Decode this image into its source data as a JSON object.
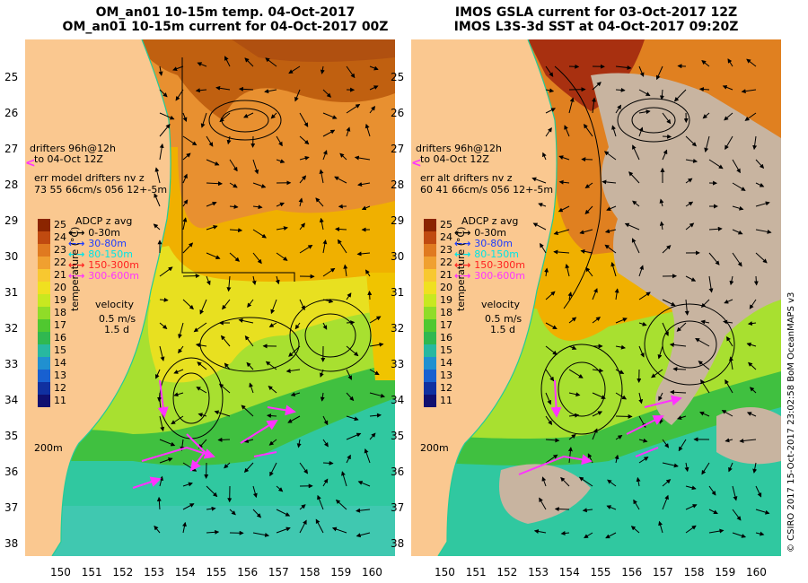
{
  "left_panel": {
    "title_line1": "OM_an01 10-15m temp. 04-Oct-2017",
    "title_line2": "OM_an01 10-15m current for 04-Oct-2017 00Z",
    "drifters_line1": "drifters 96h@12h",
    "drifters_line2": "to 04-Oct 12Z",
    "err_line1": "err model drifters nv z",
    "err_line2": "73 55 66cm/s 056 12+-5m",
    "depth_label": "200m"
  },
  "right_panel": {
    "title_line1": "IMOS GSLA current for 03-Oct-2017 12Z",
    "title_line2": "IMOS L3S-3d SST at 04-Oct-2017 09:20Z",
    "drifters_line1": "drifters 96h@12h",
    "drifters_line2": "to 04-Oct 12Z",
    "err_line1": "err alt drifters nv z",
    "err_line2": "60 41 66cm/s 056 12+-5m",
    "depth_label": "200m"
  },
  "legend": {
    "adcp_title": "ADCP z avg",
    "adcp_items": [
      {
        "label": "0-30m",
        "color": "#000000"
      },
      {
        "label": "30-80m",
        "color": "#1e3cff"
      },
      {
        "label": "80-150m",
        "color": "#00e5e5"
      },
      {
        "label": "150-300m",
        "color": "#ff2020"
      },
      {
        "label": "300-600m",
        "color": "#ff33ff"
      }
    ],
    "velocity_line1": "velocity",
    "velocity_line2": "0.5 m/s",
    "velocity_line3": "1.5 d",
    "colorbar_label": "temperature (°C)",
    "colorbar_ticks": [
      "25",
      "24",
      "23",
      "22",
      "21",
      "20",
      "19",
      "18",
      "17",
      "16",
      "15",
      "14",
      "13",
      "12",
      "11"
    ]
  },
  "axes": {
    "lat_ticks": [
      "25",
      "26",
      "27",
      "28",
      "29",
      "30",
      "31",
      "32",
      "33",
      "34",
      "35",
      "36",
      "37",
      "38"
    ],
    "lon_ticks": [
      "150",
      "151",
      "152",
      "153",
      "154",
      "155",
      "156",
      "157",
      "158",
      "159",
      "160"
    ]
  },
  "credit": "© CSIRO 2017  15-Oct-2017 23:02:58 BoM OceanMAPS v3",
  "colors": {
    "land": "#fac890",
    "no_data": "#c8b4a0",
    "drifter": "#ff33ff",
    "coast_line": "#22cc99"
  }
}
